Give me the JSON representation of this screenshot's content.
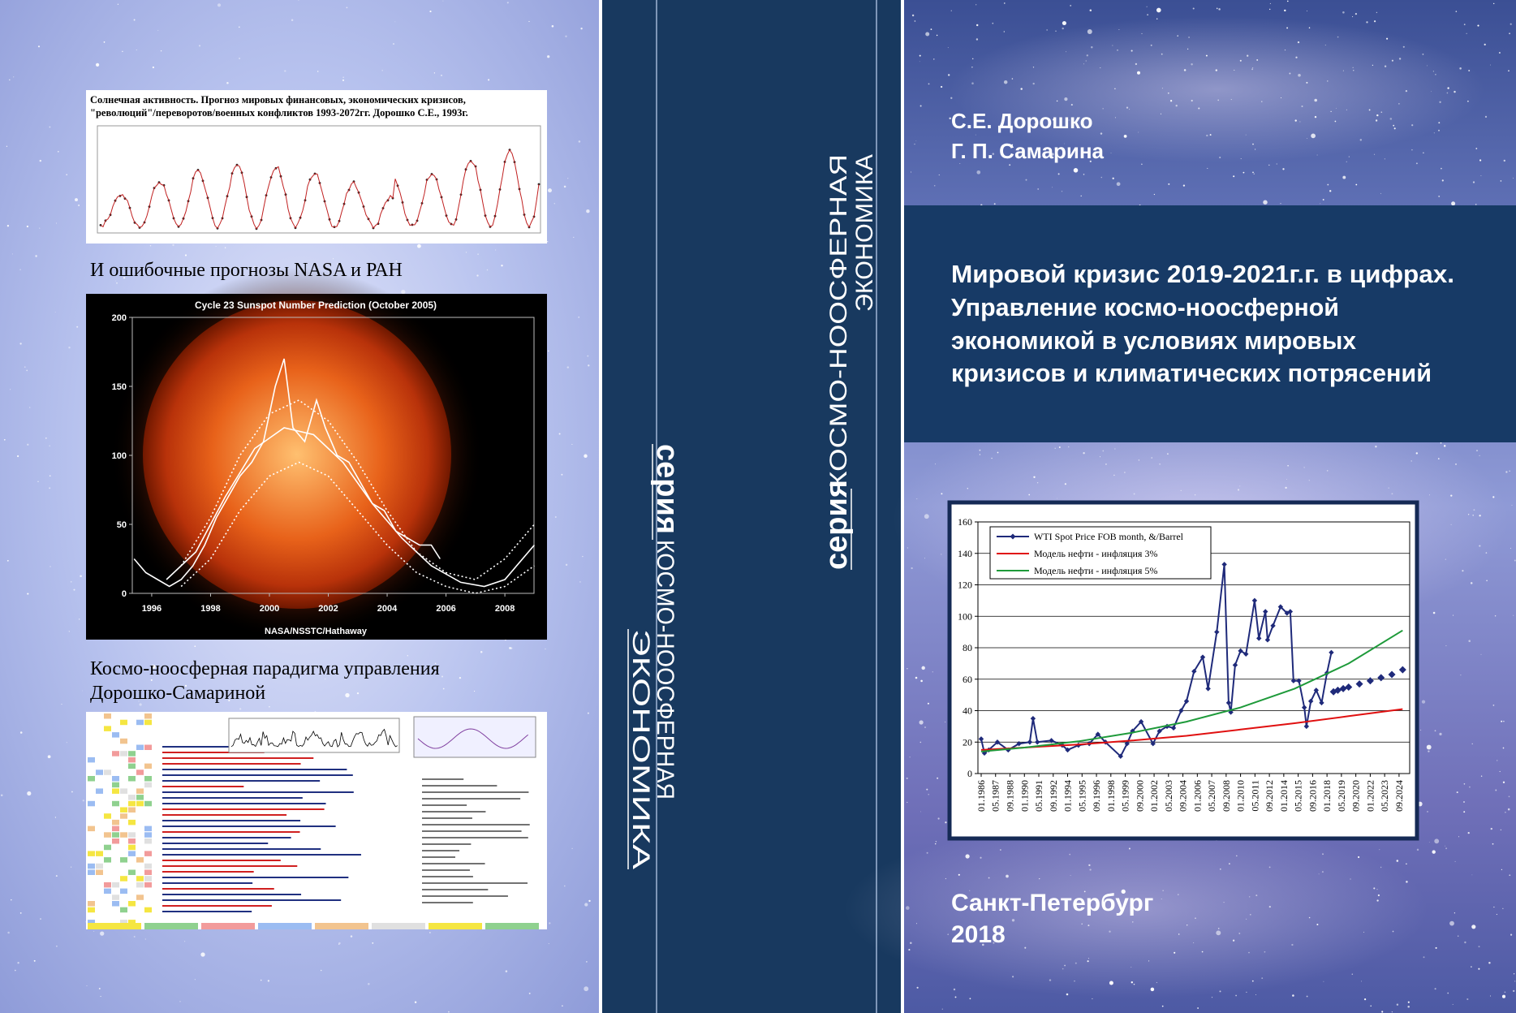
{
  "back_cover": {
    "image1_title": [
      "Солнечная активность. Прогноз мировых финансовых, экономических кризисов,",
      "\"революций\"/переворотов/военных конфликтов 1993-2072гг. Дорошко С.Е., 1993г."
    ],
    "caption1": "И ошибочные прогнозы NASA и РАН",
    "sunspot_chart": {
      "type": "line",
      "title": "Cycle 23 Sunspot Number Prediction (October 2005)",
      "credit": "NASA/NSSTC/Hathaway",
      "xlim": [
        1995.34,
        2008.99
      ],
      "ylim": [
        0,
        200
      ],
      "xticks": [
        1996,
        1998,
        2000,
        2002,
        2004,
        2006,
        2008
      ],
      "yticks": [
        0,
        50,
        100,
        150,
        200
      ],
      "grid": false,
      "series": [
        {
          "color": "#ffffff",
          "line_style": "solid",
          "x": [
            1995.4,
            1995.8,
            1996.2,
            1996.6,
            1997.0,
            1997.4,
            1997.8,
            1998.2,
            1998.6,
            1999.0,
            1999.4,
            1999.8,
            2000.2,
            2000.5,
            2000.8,
            2001.2,
            2001.6,
            2001.9,
            2002.3,
            2002.7,
            2003.1,
            2003.5,
            2003.9,
            2004.3,
            2004.7,
            2005.1,
            2005.5,
            2005.8
          ],
          "values": [
            25,
            15,
            10,
            5,
            10,
            20,
            35,
            55,
            70,
            85,
            95,
            110,
            150,
            170,
            120,
            110,
            140,
            120,
            100,
            95,
            80,
            65,
            60,
            45,
            40,
            35,
            35,
            25
          ]
        },
        {
          "color": "#ffffff",
          "line_style": "solid",
          "x": [
            1996.5,
            1997.5,
            1998.5,
            1999.5,
            2000.5,
            2001.5,
            2002.5,
            2003.5,
            2004.5,
            2005.5,
            2006.5,
            2007.3,
            2008.0,
            2009.0
          ],
          "values": [
            10,
            30,
            70,
            105,
            120,
            115,
            95,
            65,
            40,
            20,
            8,
            5,
            10,
            35
          ]
        },
        {
          "color": "#ffffff",
          "line_style": "dotted",
          "x": [
            1997,
            1998,
            1999,
            2000,
            2001,
            2002,
            2003,
            2004,
            2005,
            2006,
            2007,
            2008,
            2009
          ],
          "values": [
            20,
            55,
            100,
            130,
            140,
            125,
            95,
            60,
            30,
            15,
            10,
            25,
            50
          ]
        },
        {
          "color": "#ffffff",
          "line_style": "dotted",
          "x": [
            1997,
            1998,
            1999,
            2000,
            2001,
            2002,
            2003,
            2004,
            2005,
            2006,
            2007,
            2008,
            2009
          ],
          "values": [
            5,
            25,
            60,
            85,
            95,
            85,
            60,
            35,
            15,
            5,
            0,
            5,
            20
          ]
        }
      ]
    },
    "caption2": [
      "Космо-ноосферная парадигма управления",
      "Дорошко-Самариной"
    ]
  },
  "spine": {
    "left": {
      "series_word": "серия",
      "line1": "КОСМО-НООСФЕРНАЯ",
      "line2": "ЭКОНОМИКА"
    },
    "right": {
      "series_word": "серия",
      "line1": "КОСМО-НООСФЕРНАЯ",
      "line2": "ЭКОНОМИКА"
    }
  },
  "front_cover": {
    "authors": [
      "С.Е. Дорошко",
      "Г. П. Самарина"
    ],
    "title": [
      "Мировой кризис 2019-2021г.г. в цифрах.",
      "Управление космо-ноосферной",
      "экономикой в условиях мировых",
      "кризисов и климатических потрясений"
    ],
    "chart": {
      "type": "line",
      "xlim": [
        1985.7,
        2025.65
      ],
      "ylim": [
        0,
        160
      ],
      "yticks": [
        0,
        20,
        40,
        60,
        80,
        100,
        120,
        140,
        160
      ],
      "xticks": [
        {
          "value": 1986,
          "label": "01.1986"
        },
        {
          "value": 1987.333,
          "label": "05.1987"
        },
        {
          "value": 1988.667,
          "label": "09.1988"
        },
        {
          "value": 1990,
          "label": "01.1990"
        },
        {
          "value": 1991.333,
          "label": "05.1991"
        },
        {
          "value": 1992.667,
          "label": "09.1992"
        },
        {
          "value": 1994,
          "label": "01.1994"
        },
        {
          "value": 1995.333,
          "label": "05.1995"
        },
        {
          "value": 1996.667,
          "label": "09.1996"
        },
        {
          "value": 1998,
          "label": "01.1998"
        },
        {
          "value": 1999.333,
          "label": "05.1999"
        },
        {
          "value": 2000.667,
          "label": "09.2000"
        },
        {
          "value": 2002,
          "label": "01.2002"
        },
        {
          "value": 2003.333,
          "label": "05.2003"
        },
        {
          "value": 2004.667,
          "label": "09.2004"
        },
        {
          "value": 2006,
          "label": "01.2006"
        },
        {
          "value": 2007.333,
          "label": "05.2007"
        },
        {
          "value": 2008.667,
          "label": "09.2008"
        },
        {
          "value": 2010,
          "label": "01.2010"
        },
        {
          "value": 2011.333,
          "label": "05.2011"
        },
        {
          "value": 2012.667,
          "label": "09.2012"
        },
        {
          "value": 2014,
          "label": "01.2014"
        },
        {
          "value": 2015.333,
          "label": "05.2015"
        },
        {
          "value": 2016.667,
          "label": "09.2016"
        },
        {
          "value": 2018,
          "label": "01.2018"
        },
        {
          "value": 2019.333,
          "label": "05.2019"
        },
        {
          "value": 2020.667,
          "label": "09.2020"
        },
        {
          "value": 2022,
          "label": "01.2022"
        },
        {
          "value": 2023.333,
          "label": "05.2023"
        },
        {
          "value": 2024.667,
          "label": "09.2024"
        }
      ],
      "grid": true,
      "legend": "top-left",
      "series": [
        {
          "name": "WTI Spot Price FOB month, &/Barrel",
          "color": "#1f2a7a",
          "line_style": "solid",
          "marker": "diamond",
          "x": [
            1986.0,
            1986.3,
            1986.7,
            1987.5,
            1988.5,
            1989.5,
            1990.5,
            1990.8,
            1991.2,
            1992.5,
            1993.5,
            1994.0,
            1995.0,
            1996.0,
            1996.8,
            1997.5,
            1998.9,
            1999.5,
            2000.0,
            2000.8,
            2001.9,
            2002.5,
            2003.2,
            2003.8,
            2004.5,
            2005.0,
            2005.7,
            2006.5,
            2007.0,
            2007.8,
            2008.5,
            2008.9,
            2009.1,
            2009.5,
            2010.0,
            2010.5,
            2011.3,
            2011.7,
            2012.3,
            2012.5,
            2013.0,
            2013.7,
            2014.3,
            2014.6,
            2014.9,
            2015.4,
            2015.9,
            2016.1,
            2016.5,
            2017.0,
            2017.5,
            2018.0,
            2018.4
          ],
          "values": [
            22,
            13,
            15,
            20,
            15,
            19,
            20,
            35,
            20,
            21,
            18,
            15,
            18,
            19,
            25,
            20,
            11,
            19,
            27,
            33,
            19,
            27,
            30,
            29,
            40,
            46,
            65,
            74,
            54,
            90,
            133,
            45,
            39,
            69,
            78,
            76,
            110,
            86,
            103,
            85,
            94,
            106,
            102,
            103,
            59,
            59,
            42,
            30,
            46,
            53,
            45,
            64,
            77
          ]
        },
        {
          "name": "Модель нефти - инфляция 3%",
          "color": "#e01010",
          "line_style": "solid",
          "marker": "none",
          "x": [
            1986,
            1990,
            1995,
            2000,
            2005,
            2010,
            2015,
            2020,
            2025
          ],
          "values": [
            15,
            16.5,
            18.5,
            21,
            24,
            28,
            32,
            36.5,
            41
          ]
        },
        {
          "name": "Модель нефти - инфляция 5%",
          "color": "#1e9a3a",
          "line_style": "solid",
          "marker": "none",
          "x": [
            1986,
            1990,
            1995,
            2000,
            2005,
            2010,
            2015,
            2020,
            2025
          ],
          "values": [
            14,
            16.5,
            20.5,
            26,
            33,
            42,
            54,
            70,
            91
          ]
        },
        {
          "color": "#1f2a7a",
          "line_style": "none",
          "marker": "diamond",
          "x": [
            2018.6,
            2019.0,
            2019.5,
            2020.0,
            2021.0,
            2022.0,
            2023.0,
            2024.0,
            2025.0
          ],
          "values": [
            52,
            53,
            54,
            55,
            57,
            59,
            61,
            63,
            66
          ]
        }
      ]
    },
    "city": "Санкт-Петербург",
    "year": "2018"
  }
}
